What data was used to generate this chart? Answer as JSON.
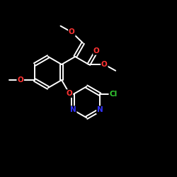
{
  "background_color": "#000000",
  "bond_color": "#ffffff",
  "atom_colors": {
    "O": "#ff3333",
    "N": "#3333ff",
    "Cl": "#33cc33",
    "C": "#ffffff"
  },
  "figsize": [
    2.5,
    2.5
  ],
  "dpi": 100,
  "bond_lw": 1.4,
  "font_size": 7.5
}
